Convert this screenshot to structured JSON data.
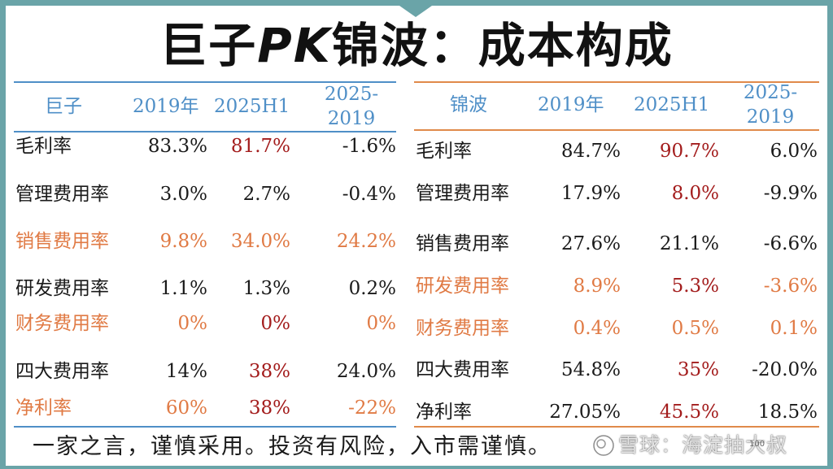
{
  "title": {
    "prefix": "巨子",
    "pk": "PK",
    "suffix": "锦波：成本构成"
  },
  "left_table": {
    "headers": [
      "巨子",
      "2019年",
      "2025H1",
      "2025-",
      "2019"
    ],
    "rows": [
      {
        "label": "毛利率",
        "v2019": "83.3%",
        "v2025": "81.7%",
        "diff": "-1.6%",
        "c_label": "#1a1a1a",
        "c2019": "#1a1a1a",
        "c2025": "#a31c1c",
        "cdiff": "#1a1a1a"
      },
      {
        "label": "管理费用率",
        "v2019": "3.0%",
        "v2025": "2.7%",
        "diff": "-0.4%",
        "c_label": "#1a1a1a",
        "c2019": "#1a1a1a",
        "c2025": "#1a1a1a",
        "cdiff": "#1a1a1a"
      },
      {
        "label": "销售费用率",
        "v2019": "9.8%",
        "v2025": "34.0%",
        "diff": "24.2%",
        "c_label": "#e07a44",
        "c2019": "#e07a44",
        "c2025": "#e07a44",
        "cdiff": "#e07a44"
      },
      {
        "label": "研发费用率",
        "v2019": "1.1%",
        "v2025": "1.3%",
        "diff": "0.2%",
        "c_label": "#1a1a1a",
        "c2019": "#1a1a1a",
        "c2025": "#1a1a1a",
        "cdiff": "#1a1a1a"
      },
      {
        "label": "财务费用率",
        "v2019": "0%",
        "v2025": "0%",
        "diff": "0%",
        "c_label": "#e07a44",
        "c2019": "#e07a44",
        "c2025": "#a31c1c",
        "cdiff": "#e07a44"
      },
      {
        "label": "四大费用率",
        "v2019": "14%",
        "v2025": "38%",
        "diff": "24.0%",
        "c_label": "#1a1a1a",
        "c2019": "#1a1a1a",
        "c2025": "#a31c1c",
        "cdiff": "#1a1a1a"
      },
      {
        "label": "净利率",
        "v2019": "60%",
        "v2025": "38%",
        "diff": "-22%",
        "c_label": "#e07a44",
        "c2019": "#e07a44",
        "c2025": "#a31c1c",
        "cdiff": "#e07a44"
      }
    ]
  },
  "right_table": {
    "headers": [
      "锦波",
      "2019年",
      "2025H1",
      "2025-",
      "2019"
    ],
    "rows": [
      {
        "label": "毛利率",
        "v2019": "84.7%",
        "v2025": "90.7%",
        "diff": "6.0%",
        "c_label": "#1a1a1a",
        "c2019": "#1a1a1a",
        "c2025": "#a31c1c",
        "cdiff": "#1a1a1a"
      },
      {
        "label": "管理费用率",
        "v2019": "17.9%",
        "v2025": "8.0%",
        "diff": "-9.9%",
        "c_label": "#1a1a1a",
        "c2019": "#1a1a1a",
        "c2025": "#a31c1c",
        "cdiff": "#1a1a1a"
      },
      {
        "label": "销售费用率",
        "v2019": "27.6%",
        "v2025": "21.1%",
        "diff": "-6.6%",
        "c_label": "#1a1a1a",
        "c2019": "#1a1a1a",
        "c2025": "#1a1a1a",
        "cdiff": "#1a1a1a"
      },
      {
        "label": "研发费用率",
        "v2019": "8.9%",
        "v2025": "5.3%",
        "diff": "-3.6%",
        "c_label": "#e07a44",
        "c2019": "#e07a44",
        "c2025": "#a31c1c",
        "cdiff": "#e07a44"
      },
      {
        "label": "财务费用率",
        "v2019": "0.4%",
        "v2025": "0.5%",
        "diff": "0.1%",
        "c_label": "#e07a44",
        "c2019": "#e07a44",
        "c2025": "#e07a44",
        "cdiff": "#e07a44"
      },
      {
        "label": "四大费用率",
        "v2019": "54.8%",
        "v2025": "35%",
        "diff": "-20.0%",
        "c_label": "#1a1a1a",
        "c2019": "#1a1a1a",
        "c2025": "#a31c1c",
        "cdiff": "#1a1a1a"
      },
      {
        "label": "净利率",
        "v2019": "27.05%",
        "v2025": "45.5%",
        "diff": "18.5%",
        "c_label": "#1a1a1a",
        "c2019": "#1a1a1a",
        "c2025": "#a31c1c",
        "cdiff": "#1a1a1a"
      }
    ]
  },
  "footer": {
    "text": "一家之言，谨慎采用。投资有风险，入市需谨慎。"
  },
  "watermark": {
    "text": "雪球：海淀抽大叔",
    "logo_icon": "snowball-logo-icon"
  },
  "page_number": "100",
  "colors": {
    "accent_teal": "#6aa4a8",
    "header_blue": "#4f8fc7",
    "highlight_red": "#a31c1c",
    "highlight_orange": "#e07a44"
  }
}
